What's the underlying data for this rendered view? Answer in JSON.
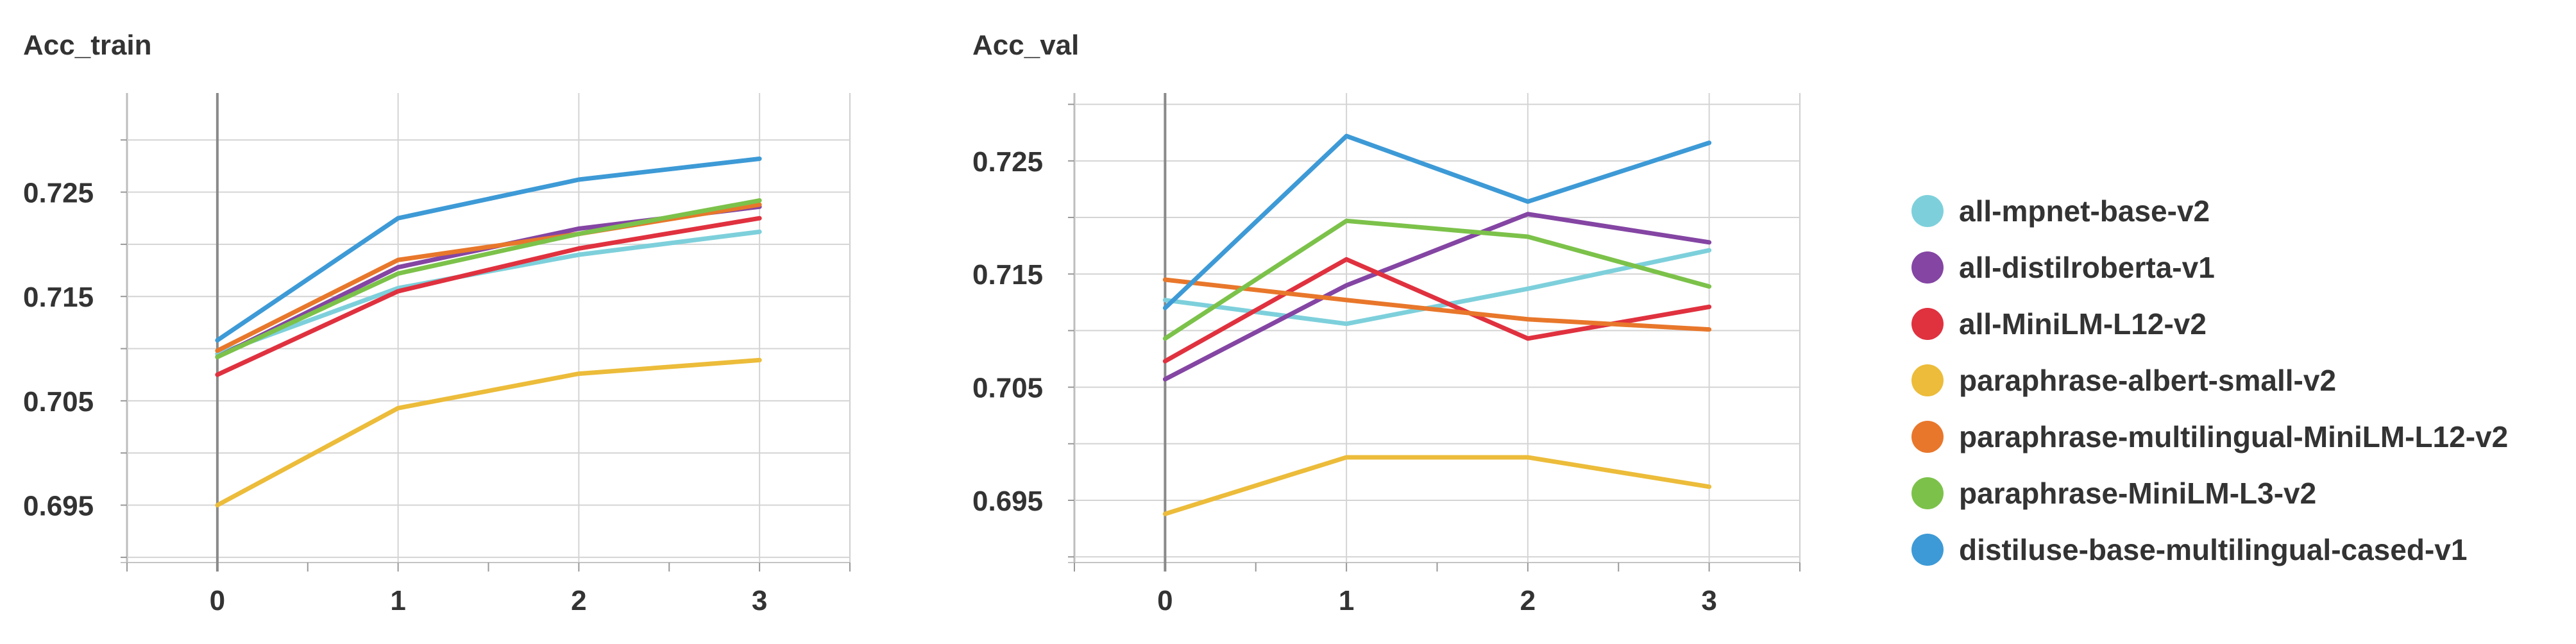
{
  "chart_data": [
    {
      "type": "line",
      "title": "Acc_train",
      "xlabel": "",
      "ylabel": "",
      "x": [
        0,
        1,
        2,
        3
      ],
      "xlim": [
        -0.5,
        3.5
      ],
      "ylim": [
        0.6895,
        0.7345
      ],
      "yticks": [
        0.695,
        0.705,
        0.715,
        0.725
      ],
      "ytick_labels": [
        "0.695",
        "0.705",
        "0.715",
        "0.725"
      ],
      "xtick_labels": [
        "0",
        "1",
        "2",
        "3"
      ],
      "grid": true,
      "series": [
        {
          "name": "all-mpnet-base-v2",
          "values": [
            0.7095,
            0.7158,
            0.719,
            0.7212
          ]
        },
        {
          "name": "all-distilroberta-v1",
          "values": [
            0.7092,
            0.7178,
            0.7215,
            0.7236
          ]
        },
        {
          "name": "all-MiniLM-L12-v2",
          "values": [
            0.7075,
            0.7155,
            0.7196,
            0.7225
          ]
        },
        {
          "name": "paraphrase-albert-small-v2",
          "values": [
            0.695,
            0.7043,
            0.7076,
            0.7089
          ]
        },
        {
          "name": "paraphrase-multilingual-MiniLM-L12-v2",
          "values": [
            0.7098,
            0.7185,
            0.721,
            0.7238
          ]
        },
        {
          "name": "paraphrase-MiniLM-L3-v2",
          "values": [
            0.7092,
            0.7172,
            0.721,
            0.7242
          ]
        },
        {
          "name": "distiluse-base-multilingual-cased-v1",
          "values": [
            0.7108,
            0.7225,
            0.7262,
            0.7282
          ]
        }
      ]
    },
    {
      "type": "line",
      "title": "Acc_val",
      "xlabel": "",
      "ylabel": "",
      "x": [
        0,
        1,
        2,
        3
      ],
      "xlim": [
        -0.5,
        3.5
      ],
      "ylim": [
        0.6895,
        0.731
      ],
      "yticks": [
        0.695,
        0.705,
        0.715,
        0.725
      ],
      "ytick_labels": [
        "0.695",
        "0.705",
        "0.715",
        "0.725"
      ],
      "xtick_labels": [
        "0",
        "1",
        "2",
        "3"
      ],
      "grid": true,
      "series": [
        {
          "name": "all-mpnet-base-v2",
          "values": [
            0.7127,
            0.7106,
            0.7137,
            0.7171
          ]
        },
        {
          "name": "all-distilroberta-v1",
          "values": [
            0.7057,
            0.714,
            0.7203,
            0.7178
          ]
        },
        {
          "name": "all-MiniLM-L12-v2",
          "values": [
            0.7073,
            0.7163,
            0.7093,
            0.7121
          ]
        },
        {
          "name": "paraphrase-albert-small-v2",
          "values": [
            0.6938,
            0.6988,
            0.6988,
            0.6962
          ]
        },
        {
          "name": "paraphrase-multilingual-MiniLM-L12-v2",
          "values": [
            0.7145,
            0.7127,
            0.711,
            0.7101
          ]
        },
        {
          "name": "paraphrase-MiniLM-L3-v2",
          "values": [
            0.7093,
            0.7197,
            0.7183,
            0.7139
          ]
        },
        {
          "name": "distiluse-base-multilingual-cased-v1",
          "values": [
            0.712,
            0.7272,
            0.7214,
            0.7266
          ]
        }
      ]
    }
  ],
  "colors": {
    "all-mpnet-base-v2": "#7dd0db",
    "all-distilroberta-v1": "#8445a3",
    "all-MiniLM-L12-v2": "#e0313f",
    "paraphrase-albert-small-v2": "#ecbc3a",
    "paraphrase-multilingual-MiniLM-L12-v2": "#e8772b",
    "paraphrase-MiniLM-L3-v2": "#7cc24a",
    "distiluse-base-multilingual-cased-v1": "#3d9ad6"
  },
  "legend": {
    "placement": "right",
    "items": [
      {
        "label": "all-mpnet-base-v2",
        "color": "#7dd0db"
      },
      {
        "label": "all-distilroberta-v1",
        "color": "#8445a3"
      },
      {
        "label": "all-MiniLM-L12-v2",
        "color": "#e0313f"
      },
      {
        "label": "paraphrase-albert-small-v2",
        "color": "#ecbc3a"
      },
      {
        "label": "paraphrase-multilingual-MiniLM-L12-v2",
        "color": "#e8772b"
      },
      {
        "label": "paraphrase-MiniLM-L3-v2",
        "color": "#7cc24a"
      },
      {
        "label": "distiluse-base-multilingual-cased-v1",
        "color": "#3d9ad6"
      }
    ]
  }
}
